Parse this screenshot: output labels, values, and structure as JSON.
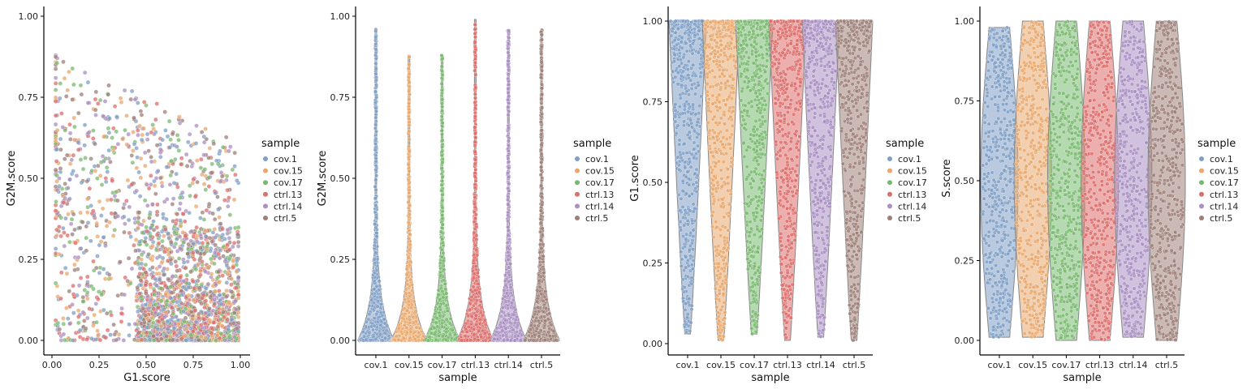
{
  "legend": {
    "title": "sample",
    "entries": [
      {
        "label": "cov.1",
        "color": "#7f9fc6"
      },
      {
        "label": "cov.15",
        "color": "#e8a86d"
      },
      {
        "label": "cov.17",
        "color": "#79b96f"
      },
      {
        "label": "ctrl.13",
        "color": "#dc6e6c"
      },
      {
        "label": "ctrl.14",
        "color": "#a98fc2"
      },
      {
        "label": "ctrl.5",
        "color": "#9e7f78"
      }
    ]
  },
  "chart_data": [
    {
      "type": "scatter",
      "xlabel": "G1.score",
      "ylabel": "G2M.score",
      "xlim": [
        0,
        1
      ],
      "ylim": [
        0,
        1
      ],
      "xticks": [
        "0.00",
        "0.25",
        "0.50",
        "0.75",
        "1.00"
      ],
      "yticks": [
        "0.00",
        "0.25",
        "0.50",
        "0.75",
        "1.00"
      ],
      "series": [
        {
          "name": "cov.1"
        },
        {
          "name": "cov.15"
        },
        {
          "name": "cov.17"
        },
        {
          "name": "ctrl.13"
        },
        {
          "name": "ctrl.14"
        },
        {
          "name": "ctrl.5"
        }
      ]
    },
    {
      "type": "violin",
      "xlabel": "sample",
      "ylabel": "G2M.score",
      "ylim": [
        0,
        1
      ],
      "yticks": [
        "0.00",
        "0.25",
        "0.50",
        "0.75",
        "1.00"
      ],
      "categories": [
        "cov.1",
        "cov.15",
        "cov.17",
        "ctrl.13",
        "ctrl.14",
        "ctrl.5"
      ],
      "max": [
        0.96,
        0.88,
        0.88,
        0.99,
        0.96,
        0.96
      ],
      "min": [
        0.0,
        0.0,
        0.0,
        0.0,
        0.0,
        0.0
      ],
      "distribution": "low-skewed"
    },
    {
      "type": "violin",
      "xlabel": "sample",
      "ylabel": "G1.score",
      "ylim": [
        0,
        1
      ],
      "yticks": [
        "0.00",
        "0.25",
        "0.50",
        "0.75",
        "1.00"
      ],
      "categories": [
        "cov.1",
        "cov.15",
        "cov.17",
        "ctrl.13",
        "ctrl.14",
        "ctrl.5"
      ],
      "max": [
        1.0,
        1.0,
        1.0,
        1.0,
        1.0,
        1.0
      ],
      "min": [
        0.03,
        0.01,
        0.03,
        0.01,
        0.02,
        0.01
      ],
      "distribution": "high-skewed"
    },
    {
      "type": "violin",
      "xlabel": "sample",
      "ylabel": "S.score",
      "ylim": [
        0,
        1
      ],
      "yticks": [
        "0.00",
        "0.25",
        "0.50",
        "0.75",
        "1.00"
      ],
      "categories": [
        "cov.1",
        "cov.15",
        "cov.17",
        "ctrl.13",
        "ctrl.14",
        "ctrl.5"
      ],
      "max": [
        0.98,
        1.0,
        1.0,
        1.0,
        1.0,
        1.0
      ],
      "min": [
        0.01,
        0.01,
        0.0,
        0.0,
        0.01,
        0.0
      ],
      "distribution": "uniform"
    }
  ]
}
